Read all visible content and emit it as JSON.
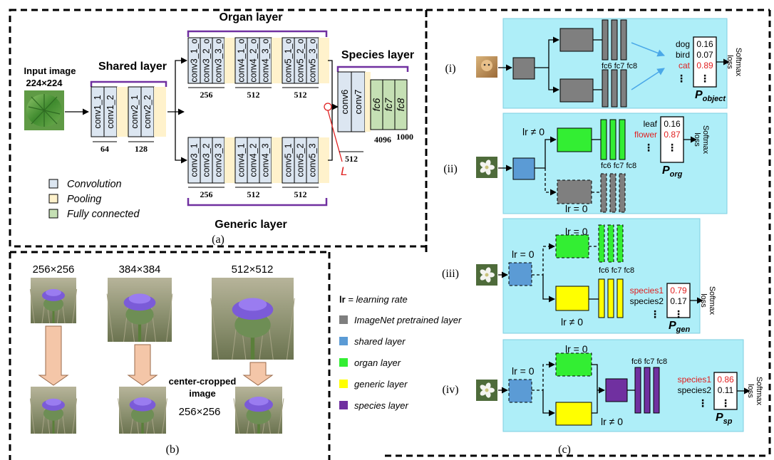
{
  "panel_a": {
    "caption": "(a)",
    "input_label": "Input image",
    "input_size": "224×224",
    "shared_title": "Shared layer",
    "organ_title": "Organ layer",
    "generic_title": "Generic layer",
    "species_title": "Species layer",
    "shared_convs": [
      "conv1_1",
      "conv1_2",
      "conv2_1",
      "conv2_2"
    ],
    "shared_dims": [
      "64",
      "128"
    ],
    "organ_convs": [
      "conv3_1_o",
      "conv3_2_o",
      "conv3_3_o",
      "conv4_1_o",
      "conv4_2_o",
      "conv4_3_o",
      "conv5_1_o",
      "conv5_2_o",
      "conv5_3_o"
    ],
    "generic_convs": [
      "conv3_1",
      "conv3_2",
      "conv3_3",
      "conv4_1",
      "conv4_2",
      "conv4_3",
      "conv5_1",
      "conv5_2",
      "conv5_3"
    ],
    "branch_dims": [
      "256",
      "512",
      "512"
    ],
    "species_convs": [
      "conv6",
      "conv7"
    ],
    "species_fcs": [
      "fc6",
      "fc7",
      "fc8"
    ],
    "species_dims": [
      "512",
      "4096",
      "1000"
    ],
    "loss_label": "L",
    "legend": [
      {
        "label": "Convolution",
        "color": "#dce6f1"
      },
      {
        "label": "Pooling",
        "color": "#fff2cc"
      },
      {
        "label": "Fully connected",
        "color": "#c5e0b4"
      }
    ]
  },
  "panel_b": {
    "caption": "(b)",
    "sizes": [
      "256×256",
      "384×384",
      "512×512"
    ],
    "crop_label_1": "center-cropped",
    "crop_label_2": "image",
    "crop_size": "256×256"
  },
  "legend_c": {
    "lr_key": "lr",
    "lr_def": " = learning rate",
    "items": [
      {
        "label": "ImageNet pretrained layer",
        "color": "#7f7f7f"
      },
      {
        "label": "shared layer",
        "color": "#5b9bd5"
      },
      {
        "label": "organ layer",
        "color": "#33ee33"
      },
      {
        "label": "generic layer",
        "color": "#ffff00"
      },
      {
        "label": "species layer",
        "color": "#7030a0"
      }
    ]
  },
  "panel_c": {
    "caption": "(c)",
    "softmax": "Softmax",
    "loss": "loss",
    "fc_labels": "fc6 fc7 fc8",
    "lr_zero": "lr = 0",
    "lr_nonzero": "lr ≠ 0",
    "rows": [
      {
        "id": "(i)",
        "labels": [
          "dog",
          "bird",
          "cat"
        ],
        "values": [
          "0.16",
          "0.07",
          "0.89"
        ],
        "highlight": 2,
        "p_sub": "object"
      },
      {
        "id": "(ii)",
        "labels": [
          "leaf",
          "flower"
        ],
        "values": [
          "0.16",
          "0.87"
        ],
        "highlight": 1,
        "p_sub": "org"
      },
      {
        "id": "(iii)",
        "labels": [
          "species1",
          "species2"
        ],
        "values": [
          "0.79",
          "0.17"
        ],
        "highlight": 0,
        "p_sub": "gen"
      },
      {
        "id": "(iv)",
        "labels": [
          "species1",
          "species2"
        ],
        "values": [
          "0.86",
          "0.11"
        ],
        "highlight": 0,
        "p_sub": "sp"
      }
    ],
    "p_letter": "P",
    "dots": "⋮",
    "dots_h": "…"
  }
}
